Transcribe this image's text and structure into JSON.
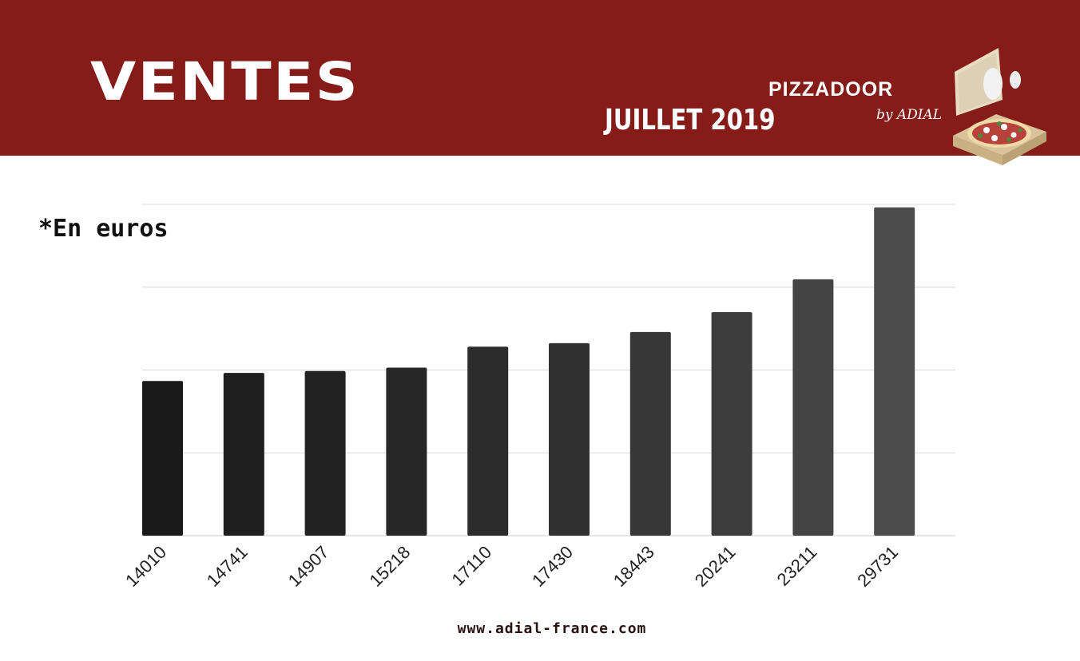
{
  "header": {
    "title": "VENTES",
    "period": "JUILLET 2019",
    "brand": "PIZZADOOR",
    "brand_sub": "by ADIAL",
    "background_color": "#851c17"
  },
  "note": "*En euros",
  "footer": {
    "url": "www.adial-france.com"
  },
  "chart_data": {
    "type": "bar",
    "categories": [
      "14010",
      "14741",
      "14907",
      "15218",
      "17110",
      "17430",
      "18443",
      "20241",
      "23211",
      "29731"
    ],
    "values": [
      14010,
      14741,
      14907,
      15218,
      17110,
      17430,
      18443,
      20241,
      23211,
      29731
    ],
    "title": "",
    "xlabel": "",
    "ylabel": "",
    "ylim": [
      0,
      30000
    ],
    "grid": true,
    "y_ticks_shown": false,
    "bar_colors": [
      "#1a1a1a",
      "#1e1e1e",
      "#222222",
      "#272727",
      "#2c2c2c",
      "#313131",
      "#373737",
      "#3d3d3d",
      "#444444",
      "#4c4c4c"
    ]
  }
}
